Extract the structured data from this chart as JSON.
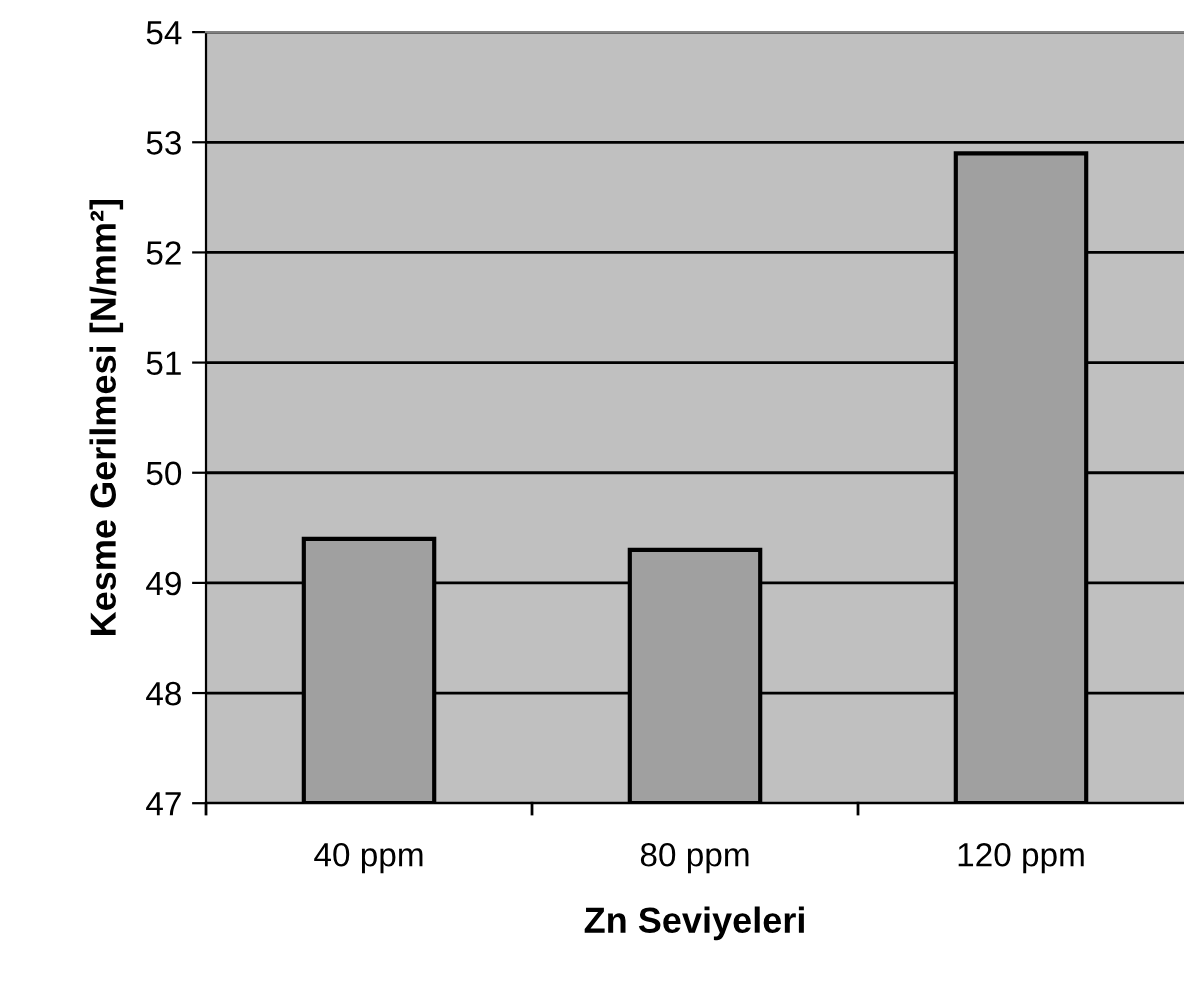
{
  "chart_data": {
    "type": "bar",
    "xlabel": "Zn Seviyeleri",
    "ylabel": "Kesme Gerilmesi [N/mm²]",
    "categories": [
      "40 ppm",
      "80 ppm",
      "120 ppm"
    ],
    "values": [
      49.4,
      49.3,
      52.9
    ],
    "color": "#a0a0a0",
    "ylim": [
      47,
      54
    ],
    "yticks": [
      47,
      48,
      49,
      50,
      51,
      52,
      53,
      54
    ],
    "grid": "y"
  }
}
